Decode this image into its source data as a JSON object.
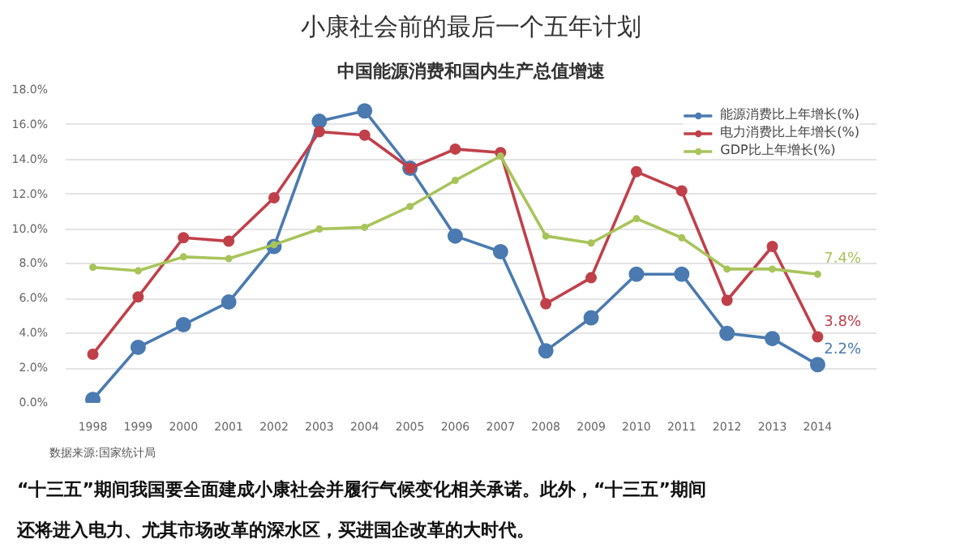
{
  "chart_data": {
    "type": "line",
    "title": "小康社会前的最后一个五年计划",
    "subtitle": "中国能源消费和国内生产总值增速",
    "categories": [
      "1998",
      "1999",
      "2000",
      "2001",
      "2002",
      "2003",
      "2004",
      "2005",
      "2006",
      "2007",
      "2008",
      "2009",
      "2010",
      "2011",
      "2012",
      "2013",
      "2014"
    ],
    "series": [
      {
        "name": "能源消费比上年增长(%)",
        "color": "#4a7ab0",
        "values": [
          0.2,
          3.2,
          4.5,
          5.8,
          9.0,
          16.2,
          16.8,
          13.5,
          9.6,
          8.7,
          3.0,
          4.9,
          7.4,
          7.4,
          4.0,
          3.7,
          2.2
        ],
        "value_labels": [
          null,
          null,
          null,
          null,
          null,
          null,
          null,
          null,
          null,
          null,
          null,
          null,
          null,
          null,
          null,
          null,
          "2.2%"
        ]
      },
      {
        "name": "电力消费比上年增长(%)",
        "color": "#c0404a",
        "values": [
          2.8,
          6.1,
          9.5,
          9.3,
          11.8,
          15.6,
          15.4,
          13.5,
          14.6,
          14.4,
          5.7,
          7.2,
          13.3,
          12.2,
          5.9,
          9.0,
          3.8
        ],
        "value_labels": [
          null,
          null,
          null,
          null,
          null,
          null,
          null,
          null,
          null,
          null,
          null,
          null,
          null,
          null,
          null,
          null,
          "3.8%"
        ]
      },
      {
        "name": "GDP比上年增长(%)",
        "color": "#a8c45a",
        "values": [
          7.8,
          7.6,
          8.4,
          8.3,
          9.1,
          10.0,
          10.1,
          11.3,
          12.8,
          14.2,
          9.6,
          9.2,
          10.6,
          9.5,
          7.7,
          7.7,
          7.4
        ],
        "value_labels": [
          null,
          null,
          null,
          null,
          null,
          null,
          null,
          null,
          null,
          null,
          null,
          null,
          null,
          null,
          null,
          null,
          "7.4%"
        ]
      }
    ],
    "ylim": [
      0,
      18
    ],
    "yticks": [
      {
        "value": 0,
        "label": "0.0%"
      },
      {
        "value": 2,
        "label": "2.0%"
      },
      {
        "value": 4,
        "label": "4.0%"
      },
      {
        "value": 6,
        "label": "6.0%"
      },
      {
        "value": 8,
        "label": "8.0%"
      },
      {
        "value": 10,
        "label": "10.0%"
      },
      {
        "value": 12,
        "label": "12.0%"
      },
      {
        "value": 14,
        "label": "14.0%"
      },
      {
        "value": 16,
        "label": "16.0%"
      },
      {
        "value": 18,
        "label": "18.0%"
      }
    ],
    "grid": "y",
    "legend": "top right",
    "marker": "circle",
    "line_style": "solid",
    "annotations": [
      "数据来源:国家统计局",
      "“十三五”期间我国要全面建成小康社会并履行气候变化相关承诺。此外，“十三五”期间还将进入电力、尤其市场改革的深水区，买进国企改革的大时代。"
    ]
  }
}
